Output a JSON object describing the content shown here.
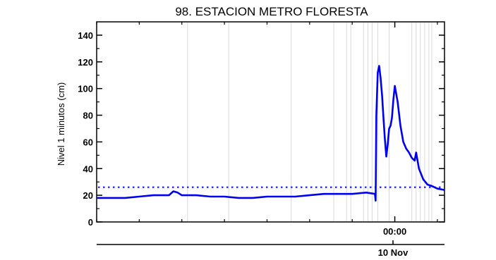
{
  "chart_data": {
    "type": "line",
    "title": "98. ESTACION METRO FLORESTA",
    "xlabel": "",
    "ylabel": "Nivel 1 minutos (cm)",
    "ylim": [
      0,
      150
    ],
    "xlim": [
      -21.0,
      3.5
    ],
    "x_unit": "hours relative to 10 Nov 00:00",
    "yticks": [
      0,
      20,
      40,
      60,
      80,
      100,
      120,
      140
    ],
    "xticks": [
      {
        "x": 0,
        "label": "00:00"
      }
    ],
    "date_label": "10 Nov",
    "grid": "vertical light gray lines",
    "vertical_gridlines_x": [
      -14.6,
      -11.7,
      -7.3,
      -4.3,
      -3.4,
      -3.1,
      -2.2,
      -1.9,
      -1.6,
      -1.2,
      -0.4,
      1.2,
      1.5,
      1.8,
      2.1,
      2.4,
      2.6
    ],
    "threshold": {
      "value": 26,
      "style": "dotted",
      "color": "#3333ff"
    },
    "series": [
      {
        "color": "#0000ee",
        "x": [
          -21.0,
          -20.0,
          -19.0,
          -18.0,
          -17.0,
          -16.5,
          -15.9,
          -15.6,
          -15.3,
          -15.0,
          -14.7,
          -14.0,
          -13.0,
          -12.0,
          -11.0,
          -10.0,
          -9.0,
          -8.0,
          -7.0,
          -6.0,
          -5.0,
          -4.0,
          -3.0,
          -2.0,
          -1.4,
          -1.35,
          -1.3,
          -1.2,
          -1.1,
          -1.0,
          -0.9,
          -0.8,
          -0.7,
          -0.6,
          -0.5,
          -0.4,
          -0.3,
          -0.2,
          -0.1,
          0.0,
          0.2,
          0.4,
          0.6,
          0.8,
          1.0,
          1.2,
          1.4,
          1.5,
          1.7,
          2.0,
          2.3,
          2.6,
          3.0,
          3.5
        ],
        "y": [
          18,
          18,
          18,
          19,
          20,
          20,
          20,
          23,
          22,
          20,
          20,
          20,
          19,
          19,
          18,
          18,
          19,
          19,
          19,
          20,
          21,
          21,
          21,
          22,
          21,
          16,
          80,
          112,
          117,
          108,
          95,
          78,
          62,
          49,
          58,
          70,
          72,
          78,
          92,
          102,
          90,
          72,
          60,
          55,
          52,
          48,
          46,
          52,
          40,
          32,
          28,
          27,
          25,
          24
        ]
      }
    ]
  }
}
